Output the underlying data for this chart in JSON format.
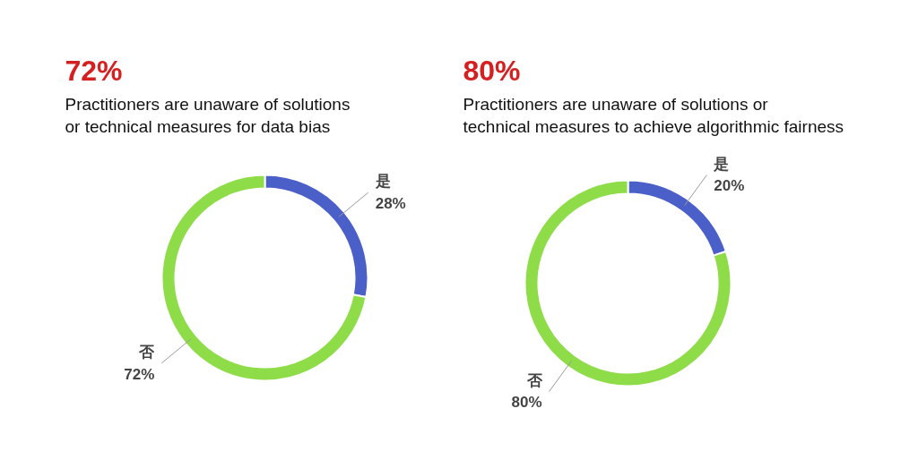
{
  "chart_data": [
    {
      "type": "donut",
      "title": "72%",
      "subtitle": "Practitioners are unaware of solutions\n or technical measures for data bias",
      "categories": [
        "是",
        "否"
      ],
      "values": [
        28,
        72
      ],
      "colors": [
        "#4b5fc8",
        "#8ddc48"
      ],
      "value_labels": [
        "28%",
        "72%"
      ]
    },
    {
      "type": "donut",
      "title": "80%",
      "subtitle": "Practitioners are unaware of solutions or\ntechnical measures to achieve algorithmic fairness",
      "categories": [
        "是",
        "否"
      ],
      "values": [
        20,
        80
      ],
      "colors": [
        "#4b5fc8",
        "#8ddc48"
      ],
      "value_labels": [
        "20%",
        "80%"
      ]
    }
  ]
}
